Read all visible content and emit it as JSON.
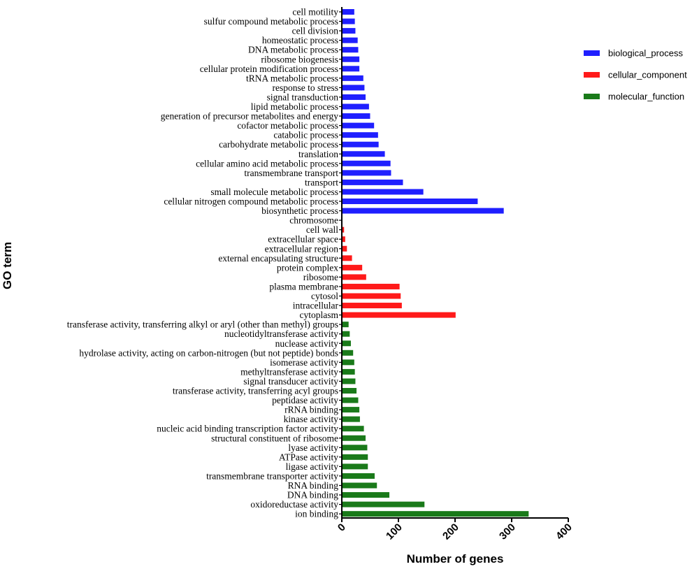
{
  "chart_data": {
    "type": "bar",
    "orientation": "horizontal",
    "xlabel": "Number of genes",
    "ylabel": "GO term",
    "xlim": [
      0,
      400
    ],
    "xticks": [
      0,
      100,
      200,
      300,
      400
    ],
    "grid": false,
    "legend_position": "top-right",
    "series": [
      {
        "name": "biological_process",
        "color": "#1f1fff",
        "categories": [
          "cell motility",
          "sulfur compound metabolic process",
          "cell division",
          "homeostatic process",
          "DNA metabolic process",
          "ribosome biogenesis",
          "cellular protein modification process",
          "tRNA metabolic process",
          "response to stress",
          "signal transduction",
          "lipid metabolic process",
          "generation of precursor metabolites and energy",
          "cofactor metabolic process",
          "catabolic process",
          "carbohydrate metabolic process",
          "translation",
          "cellular amino acid metabolic process",
          "transmembrane transport",
          "transport",
          "small molecule metabolic process",
          "cellular nitrogen compound metabolic process",
          "biosynthetic process"
        ],
        "values": [
          22,
          23,
          24,
          28,
          29,
          31,
          31,
          38,
          40,
          42,
          48,
          50,
          57,
          64,
          65,
          76,
          86,
          87,
          108,
          144,
          240,
          286
        ]
      },
      {
        "name": "cellular_component",
        "color": "#ff1a1a",
        "categories": [
          "chromosome",
          "cell wall",
          "extracellular space",
          "extracellular region",
          "external encapsulating structure",
          "protein complex",
          "ribosome",
          "plasma membrane",
          "cytosol",
          "intracellular",
          "cytoplasm"
        ],
        "values": [
          1,
          4,
          6,
          9,
          18,
          36,
          43,
          102,
          104,
          106,
          201
        ]
      },
      {
        "name": "molecular_function",
        "color": "#1a7a1a",
        "categories": [
          "transferase activity, transferring alkyl or aryl (other than methyl) groups",
          "nucleotidyltransferase activity",
          "nuclease activity",
          "hydrolase activity, acting on carbon-nitrogen (but not peptide) bonds",
          "isomerase activity",
          "methyltransferase activity",
          "signal transducer activity",
          "transferase activity, transferring acyl groups",
          "peptidase activity",
          "rRNA binding",
          "kinase activity",
          "nucleic acid binding transcription factor activity",
          "structural constituent of ribosome",
          "lyase activity",
          "ATPase activity",
          "ligase activity",
          "transmembrane transporter activity",
          "RNA binding",
          "DNA binding",
          "oxidoreductase activity",
          "ion binding"
        ],
        "values": [
          12,
          14,
          16,
          20,
          22,
          23,
          24,
          26,
          29,
          31,
          32,
          39,
          42,
          45,
          46,
          46,
          58,
          62,
          84,
          146,
          330
        ]
      }
    ]
  }
}
